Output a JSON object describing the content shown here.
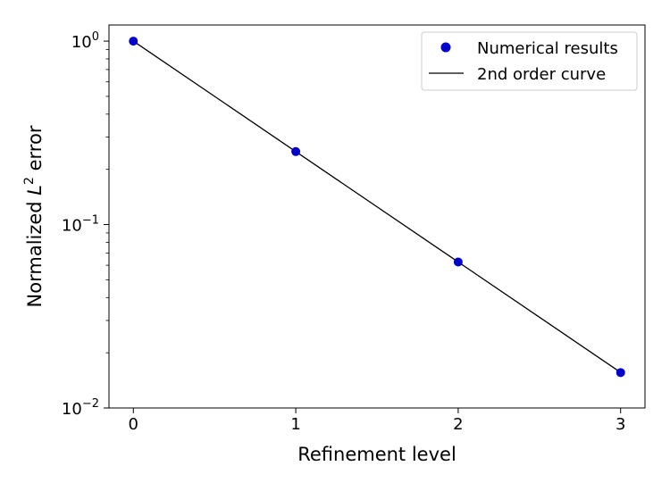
{
  "chart_data": {
    "type": "line",
    "xlabel": "Refinement level",
    "ylabel_prefix": "Normalized ",
    "ylabel_var": "L",
    "ylabel_sup": "2",
    "ylabel_suffix": " error",
    "yscale": "log",
    "xlim": [
      -0.15,
      3.15
    ],
    "ylim": [
      0.01,
      1.0
    ],
    "x_ticks": [
      0,
      1,
      2,
      3
    ],
    "x_tick_labels": [
      "0",
      "1",
      "2",
      "3"
    ],
    "y_ticks": [
      {
        "value": 1.0,
        "base": "10",
        "exp": "0"
      },
      {
        "value": 0.1,
        "base": "10",
        "exp": "−1"
      },
      {
        "value": 0.01,
        "base": "10",
        "exp": "−2"
      }
    ],
    "grid": false,
    "legend_position": "top-right",
    "series": [
      {
        "name": "Numerical results",
        "style": "markers",
        "color": "#0000cc",
        "x": [
          0,
          1,
          2,
          3
        ],
        "y": [
          1.0,
          0.25,
          0.0625,
          0.0156
        ]
      },
      {
        "name": "2nd order curve",
        "style": "line",
        "color": "#000000",
        "x": [
          0,
          1,
          2,
          3
        ],
        "y": [
          1.0,
          0.25,
          0.0625,
          0.015625
        ]
      }
    ]
  }
}
